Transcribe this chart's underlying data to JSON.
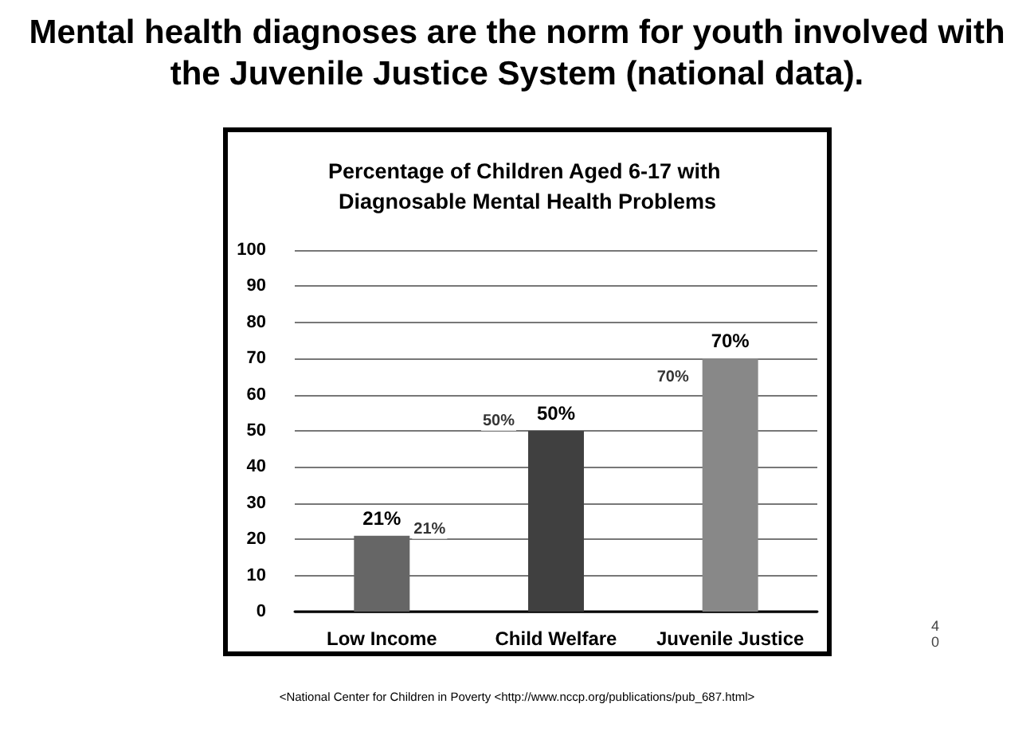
{
  "chart_data": {
    "type": "bar",
    "title": "Mental health diagnoses are the norm for youth involved with the Juvenile Justice System (national data).",
    "subtitle": "Percentage of Children Aged 6-17 with Diagnosable Mental Health Problems",
    "categories": [
      "Low Income",
      "Child Welfare",
      "Juvenile Justice"
    ],
    "values": [
      21,
      50,
      70
    ],
    "colors": [
      "#666666",
      "#404040",
      "#888888"
    ],
    "value_labels": [
      "21%",
      "50%",
      "70%"
    ],
    "ylim": [
      0,
      100
    ],
    "yticks": [
      0,
      10,
      20,
      30,
      40,
      50,
      60,
      70,
      80,
      90,
      100
    ],
    "grid": "y",
    "annotations": [
      {
        "text": "21%",
        "x": "Low Income",
        "y": 21
      },
      {
        "text": "50%",
        "x": "Child Welfare",
        "y": 50
      },
      {
        "text": "70%",
        "x": "Juvenile Justice",
        "y": 70
      },
      "40",
      "<National Center for Children in Poverty <http://www.nccp.org/publications/pub_687.html>"
    ]
  }
}
